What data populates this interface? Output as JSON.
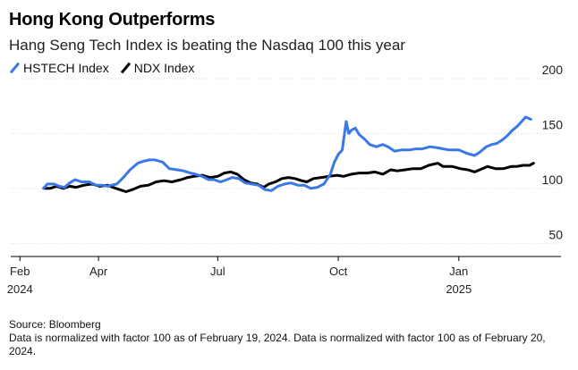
{
  "header": {
    "title": "Hong Kong Outperforms",
    "subtitle": "Hang Seng Tech Index is beating the Nasdaq 100 this year"
  },
  "legend": {
    "items": [
      {
        "label": "HSTECH Index",
        "color": "#3b78e7"
      },
      {
        "label": "NDX Index",
        "color": "#000000"
      }
    ]
  },
  "footer": {
    "source": "Source: Bloomberg",
    "note": "Data is normalized with factor 100 as of February 19, 2024. Data is normalized with factor 100 as of February 20, 2024."
  },
  "chart_data": {
    "type": "line",
    "title": "Hong Kong Outperforms",
    "subtitle": "Hang Seng Tech Index is beating the Nasdaq 100 this year",
    "xlabel": "",
    "ylabel": "",
    "ylim": [
      38,
      200
    ],
    "xlim": [
      "2024-01-25",
      "2025-03-20"
    ],
    "y_ticks": [
      200,
      150,
      100,
      50
    ],
    "y_axis_side": "right",
    "grid": "horizontal",
    "legend_position": "top-left",
    "x_ticks": [
      {
        "date": "2024-02-01",
        "label": "Feb",
        "sublabel": "2024"
      },
      {
        "date": "2024-04-01",
        "label": "Apr",
        "sublabel": ""
      },
      {
        "date": "2024-07-01",
        "label": "Jul",
        "sublabel": ""
      },
      {
        "date": "2024-10-01",
        "label": "Oct",
        "sublabel": ""
      },
      {
        "date": "2025-01-01",
        "label": "Jan",
        "sublabel": "2025"
      }
    ],
    "series": [
      {
        "name": "HSTECH Index",
        "color": "#3b78e7",
        "points": [
          [
            "2024-02-19",
            100
          ],
          [
            "2024-02-22",
            104
          ],
          [
            "2024-02-27",
            104
          ],
          [
            "2024-03-02",
            102
          ],
          [
            "2024-03-06",
            101
          ],
          [
            "2024-03-10",
            105
          ],
          [
            "2024-03-14",
            108
          ],
          [
            "2024-03-19",
            106
          ],
          [
            "2024-03-25",
            106
          ],
          [
            "2024-03-30",
            103
          ],
          [
            "2024-04-04",
            103
          ],
          [
            "2024-04-08",
            102
          ],
          [
            "2024-04-11",
            103
          ],
          [
            "2024-04-15",
            104
          ],
          [
            "2024-04-20",
            110
          ],
          [
            "2024-04-25",
            117
          ],
          [
            "2024-05-01",
            123
          ],
          [
            "2024-05-06",
            125
          ],
          [
            "2024-05-10",
            126
          ],
          [
            "2024-05-14",
            126
          ],
          [
            "2024-05-20",
            124
          ],
          [
            "2024-05-25",
            118
          ],
          [
            "2024-05-31",
            117
          ],
          [
            "2024-06-05",
            116
          ],
          [
            "2024-06-10",
            114
          ],
          [
            "2024-06-14",
            113
          ],
          [
            "2024-06-19",
            111
          ],
          [
            "2024-06-24",
            108
          ],
          [
            "2024-06-28",
            108
          ],
          [
            "2024-07-03",
            106
          ],
          [
            "2024-07-08",
            108
          ],
          [
            "2024-07-12",
            110
          ],
          [
            "2024-07-17",
            109
          ],
          [
            "2024-07-22",
            105
          ],
          [
            "2024-07-27",
            104
          ],
          [
            "2024-08-01",
            103
          ],
          [
            "2024-08-06",
            99
          ],
          [
            "2024-08-11",
            98
          ],
          [
            "2024-08-16",
            102
          ],
          [
            "2024-08-21",
            104
          ],
          [
            "2024-08-26",
            105
          ],
          [
            "2024-08-31",
            103
          ],
          [
            "2024-09-05",
            103
          ],
          [
            "2024-09-10",
            100
          ],
          [
            "2024-09-15",
            101
          ],
          [
            "2024-09-20",
            104
          ],
          [
            "2024-09-25",
            113
          ],
          [
            "2024-09-28",
            124
          ],
          [
            "2024-10-01",
            131
          ],
          [
            "2024-10-04",
            135
          ],
          [
            "2024-10-07",
            161
          ],
          [
            "2024-10-09",
            150
          ],
          [
            "2024-10-11",
            153
          ],
          [
            "2024-10-14",
            155
          ],
          [
            "2024-10-17",
            149
          ],
          [
            "2024-10-21",
            145
          ],
          [
            "2024-10-25",
            140
          ],
          [
            "2024-10-30",
            138
          ],
          [
            "2024-11-04",
            140
          ],
          [
            "2024-11-08",
            138
          ],
          [
            "2024-11-13",
            134
          ],
          [
            "2024-11-18",
            135
          ],
          [
            "2024-11-24",
            135
          ],
          [
            "2024-11-29",
            136
          ],
          [
            "2024-12-04",
            136
          ],
          [
            "2024-12-10",
            138
          ],
          [
            "2024-12-16",
            137
          ],
          [
            "2024-12-20",
            136
          ],
          [
            "2024-12-25",
            135
          ],
          [
            "2025-01-01",
            135
          ],
          [
            "2025-01-07",
            132
          ],
          [
            "2025-01-13",
            130
          ],
          [
            "2025-01-17",
            133
          ],
          [
            "2025-01-22",
            138
          ],
          [
            "2025-01-26",
            140
          ],
          [
            "2025-01-30",
            141
          ],
          [
            "2025-02-03",
            144
          ],
          [
            "2025-02-07",
            148
          ],
          [
            "2025-02-11",
            153
          ],
          [
            "2025-02-15",
            157
          ],
          [
            "2025-02-18",
            161
          ],
          [
            "2025-02-21",
            165
          ],
          [
            "2025-02-25",
            163
          ]
        ]
      },
      {
        "name": "NDX Index",
        "color": "#000000",
        "points": [
          [
            "2024-02-20",
            100
          ],
          [
            "2024-02-24",
            100
          ],
          [
            "2024-02-29",
            102
          ],
          [
            "2024-03-05",
            100
          ],
          [
            "2024-03-10",
            102
          ],
          [
            "2024-03-15",
            101
          ],
          [
            "2024-03-21",
            103
          ],
          [
            "2024-03-27",
            104
          ],
          [
            "2024-04-02",
            102
          ],
          [
            "2024-04-08",
            103
          ],
          [
            "2024-04-12",
            101
          ],
          [
            "2024-04-17",
            99
          ],
          [
            "2024-04-22",
            97
          ],
          [
            "2024-04-27",
            99
          ],
          [
            "2024-05-03",
            102
          ],
          [
            "2024-05-09",
            103
          ],
          [
            "2024-05-15",
            106
          ],
          [
            "2024-05-21",
            107
          ],
          [
            "2024-05-27",
            106
          ],
          [
            "2024-06-03",
            108
          ],
          [
            "2024-06-08",
            110
          ],
          [
            "2024-06-13",
            111
          ],
          [
            "2024-06-19",
            112
          ],
          [
            "2024-06-25",
            110
          ],
          [
            "2024-07-01",
            111
          ],
          [
            "2024-07-06",
            114
          ],
          [
            "2024-07-11",
            115
          ],
          [
            "2024-07-16",
            113
          ],
          [
            "2024-07-21",
            108
          ],
          [
            "2024-07-26",
            105
          ],
          [
            "2024-07-31",
            104
          ],
          [
            "2024-08-05",
            101
          ],
          [
            "2024-08-09",
            104
          ],
          [
            "2024-08-14",
            106
          ],
          [
            "2024-08-19",
            109
          ],
          [
            "2024-08-24",
            110
          ],
          [
            "2024-08-29",
            109
          ],
          [
            "2024-09-03",
            107
          ],
          [
            "2024-09-07",
            106
          ],
          [
            "2024-09-12",
            109
          ],
          [
            "2024-09-18",
            110
          ],
          [
            "2024-09-24",
            111
          ],
          [
            "2024-09-30",
            112
          ],
          [
            "2024-10-05",
            111
          ],
          [
            "2024-10-11",
            113
          ],
          [
            "2024-10-17",
            114
          ],
          [
            "2024-10-23",
            114
          ],
          [
            "2024-10-29",
            115
          ],
          [
            "2024-11-04",
            113
          ],
          [
            "2024-11-10",
            117
          ],
          [
            "2024-11-15",
            116
          ],
          [
            "2024-11-21",
            117
          ],
          [
            "2024-11-27",
            118
          ],
          [
            "2024-12-03",
            118
          ],
          [
            "2024-12-09",
            121
          ],
          [
            "2024-12-16",
            123
          ],
          [
            "2024-12-20",
            120
          ],
          [
            "2024-12-27",
            120
          ],
          [
            "2025-01-02",
            118
          ],
          [
            "2025-01-08",
            117
          ],
          [
            "2025-01-13",
            115
          ],
          [
            "2025-01-17",
            117
          ],
          [
            "2025-01-23",
            120
          ],
          [
            "2025-01-29",
            118
          ],
          [
            "2025-02-04",
            118
          ],
          [
            "2025-02-10",
            120
          ],
          [
            "2025-02-14",
            120
          ],
          [
            "2025-02-19",
            121
          ],
          [
            "2025-02-24",
            121
          ],
          [
            "2025-02-27",
            123
          ]
        ]
      }
    ]
  }
}
